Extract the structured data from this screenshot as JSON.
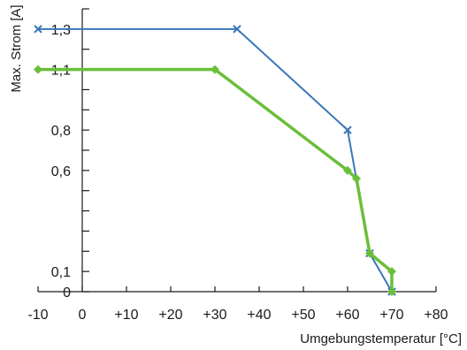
{
  "chart_data": {
    "type": "line",
    "xlabel": "Umgebungstemperatur [°C]",
    "ylabel": "Max. Strom [A]",
    "xlim": [
      -10,
      80
    ],
    "ylim": [
      0,
      1.4
    ],
    "grid": false,
    "x_ticks": [
      {
        "value": -10,
        "label": "-10"
      },
      {
        "value": 0,
        "label": "0"
      },
      {
        "value": 10,
        "label": "+10"
      },
      {
        "value": 20,
        "label": "+20"
      },
      {
        "value": 30,
        "label": "+30"
      },
      {
        "value": 40,
        "label": "+40"
      },
      {
        "value": 50,
        "label": "+50"
      },
      {
        "value": 60,
        "label": "+60"
      },
      {
        "value": 70,
        "label": "+70"
      },
      {
        "value": 80,
        "label": "+80"
      }
    ],
    "y_ticks": [
      0,
      0.1,
      0.2,
      0.3,
      0.4,
      0.5,
      0.6,
      0.7,
      0.8,
      0.9,
      1.0,
      1.1,
      1.2,
      1.3,
      1.4
    ],
    "y_tick_labels": [
      {
        "value": 0,
        "label": "0"
      },
      {
        "value": 0.1,
        "label": "0,1"
      },
      {
        "value": 0.6,
        "label": "0,6"
      },
      {
        "value": 0.8,
        "label": "0,8"
      },
      {
        "value": 1.1,
        "label": "1,1"
      },
      {
        "value": 1.3,
        "label": "1,3"
      }
    ],
    "series": [
      {
        "color": "#3a78b9",
        "marker": "x",
        "points": [
          [
            -10,
            1.3
          ],
          [
            35,
            1.3
          ],
          [
            60,
            0.8
          ],
          [
            65,
            0.19
          ],
          [
            70,
            0.0
          ]
        ]
      },
      {
        "color": "#6abf3a",
        "marker": "diamond",
        "points": [
          [
            -10,
            1.1
          ],
          [
            30,
            1.1
          ],
          [
            60,
            0.6
          ],
          [
            62,
            0.56
          ],
          [
            65,
            0.19
          ],
          [
            70,
            0.1
          ],
          [
            70,
            0.0
          ]
        ]
      }
    ]
  }
}
